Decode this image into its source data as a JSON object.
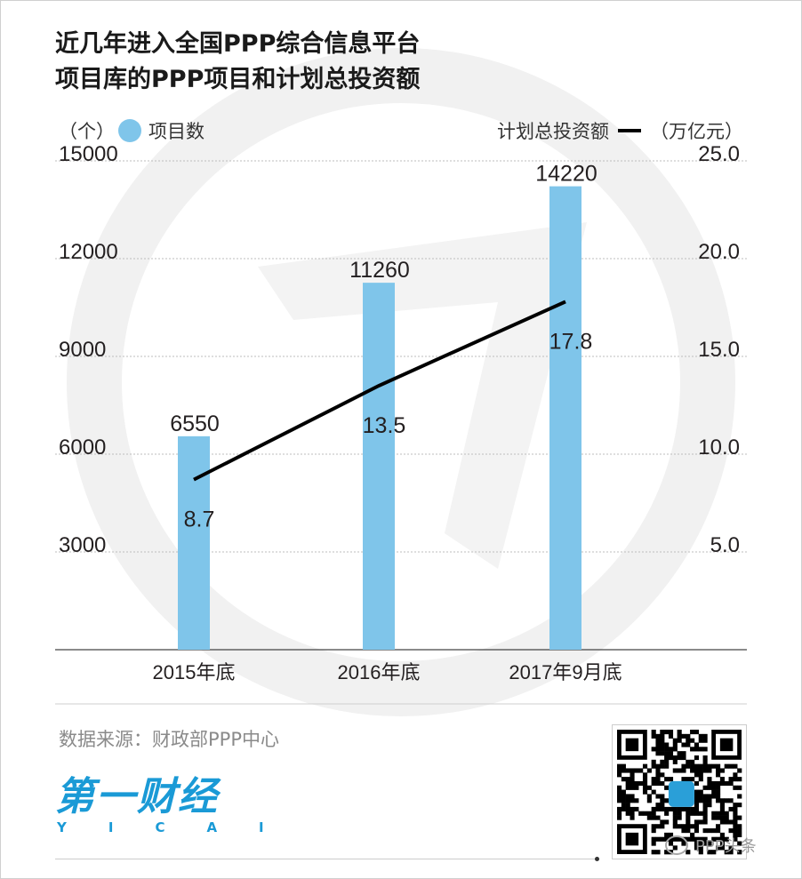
{
  "title_lines": [
    "近几年进入全国PPP综合信息平台",
    "项目库的PPP项目和计划总投资额"
  ],
  "legend": {
    "left_unit": "（个）",
    "bar_label": "项目数",
    "line_label": "计划总投资额",
    "right_unit": "（万亿元）"
  },
  "chart_data": {
    "type": "bar",
    "categories": [
      "2015年底",
      "2016年底",
      "2017年9月底"
    ],
    "series": [
      {
        "name": "项目数",
        "type": "bar",
        "axis": "left",
        "values": [
          6550,
          11260,
          14220
        ],
        "labels": [
          "6550",
          "11260",
          "14220"
        ]
      },
      {
        "name": "计划总投资额",
        "type": "line",
        "axis": "right",
        "values": [
          8.7,
          13.5,
          17.8
        ],
        "labels": [
          "8.7",
          "13.5",
          "17.8"
        ]
      }
    ],
    "ylim_left": [
      0,
      15000
    ],
    "yticks_left": [
      "3000",
      "6000",
      "9000",
      "12000",
      "15000"
    ],
    "ylim_right": [
      0,
      25
    ],
    "yticks_right": [
      "5.0",
      "10.0",
      "15.0",
      "20.0",
      "25.0"
    ],
    "grid": true,
    "colors": {
      "bar": "#7fc5ea",
      "line": "#000000",
      "grid": "#bdbdbd",
      "watermark": "#f1f1f1"
    }
  },
  "source": "数据来源：财政部PPP中心",
  "brand": {
    "name": "第一财经",
    "sub": "YICAI"
  },
  "wechat_account": "PPP头条"
}
